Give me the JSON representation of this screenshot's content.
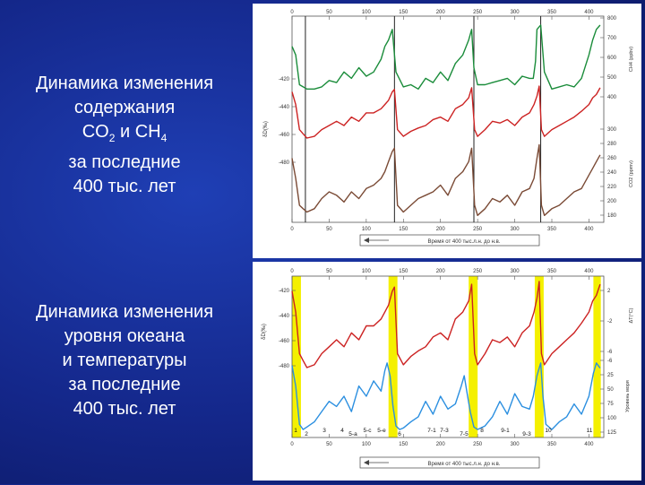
{
  "captions": {
    "top": [
      "Динамика изменения",
      "содержания",
      "CO2 и CH4",
      "за последние",
      "400 тыс. лет"
    ],
    "bottom": [
      "Динамика изменения",
      "уровня океана",
      "и температуры",
      "за последние",
      "400 тыс. лет"
    ]
  },
  "chart_data": [
    {
      "type": "line",
      "xlim": [
        0,
        420
      ],
      "x_ticks": [
        "0",
        "50",
        "100",
        "150",
        "200",
        "250",
        "300",
        "350",
        "400"
      ],
      "left_axis_label": "δD(‰)",
      "left_ticks": [
        "-420",
        "-440",
        "-460",
        "-480"
      ],
      "right_ticks_top": [
        "800",
        "700",
        "600",
        "500",
        "400"
      ],
      "right_ticks_bottom": [
        "300",
        "280",
        "260",
        "240",
        "220",
        "200",
        "180"
      ],
      "right_label_top": "CH4 (ppbv)",
      "right_label_bottom": "CO2 (ppmv)",
      "time_arrow_label": "Время от 400 тыс.л.н. до н.в.",
      "series": [
        {
          "color": "#1a8c3a",
          "x": [
            0,
            5,
            10,
            15,
            20,
            30,
            40,
            50,
            60,
            70,
            80,
            90,
            100,
            110,
            120,
            125,
            130,
            135,
            140,
            150,
            160,
            170,
            180,
            190,
            200,
            210,
            220,
            230,
            238,
            242,
            245,
            250,
            260,
            270,
            280,
            290,
            300,
            310,
            320,
            325,
            328,
            330,
            335,
            340,
            350,
            360,
            370,
            380,
            390,
            400,
            405,
            410,
            415
          ],
          "y": [
            620,
            580,
            440,
            430,
            420,
            420,
            430,
            460,
            450,
            500,
            470,
            520,
            480,
            500,
            560,
            620,
            650,
            700,
            500,
            430,
            440,
            420,
            470,
            450,
            500,
            460,
            540,
            580,
            650,
            700,
            520,
            440,
            440,
            450,
            460,
            470,
            440,
            480,
            470,
            470,
            550,
            700,
            720,
            500,
            420,
            430,
            440,
            430,
            470,
            580,
            650,
            700,
            720
          ]
        },
        {
          "color": "#cc2222",
          "x": [
            0,
            5,
            10,
            15,
            20,
            30,
            40,
            50,
            60,
            70,
            80,
            90,
            100,
            110,
            120,
            125,
            130,
            135,
            138,
            142,
            150,
            160,
            170,
            180,
            190,
            200,
            210,
            220,
            230,
            238,
            242,
            246,
            250,
            260,
            270,
            280,
            290,
            300,
            310,
            320,
            326,
            330,
            333,
            336,
            340,
            350,
            360,
            370,
            380,
            390,
            400,
            405,
            410,
            415
          ],
          "y": [
            -425,
            -440,
            -470,
            -475,
            -480,
            -478,
            -470,
            -465,
            -460,
            -465,
            -455,
            -460,
            -450,
            -450,
            -445,
            -440,
            -435,
            -425,
            -422,
            -470,
            -478,
            -472,
            -468,
            -465,
            -458,
            -455,
            -460,
            -445,
            -440,
            -432,
            -420,
            -470,
            -478,
            -470,
            -460,
            -462,
            -458,
            -465,
            -455,
            -450,
            -440,
            -430,
            -418,
            -470,
            -478,
            -470,
            -465,
            -460,
            -455,
            -448,
            -440,
            -432,
            -428,
            -420
          ]
        },
        {
          "color": "#7a4a35",
          "x": [
            0,
            5,
            10,
            15,
            20,
            30,
            40,
            50,
            60,
            70,
            80,
            90,
            100,
            110,
            120,
            125,
            130,
            135,
            138,
            142,
            150,
            160,
            170,
            180,
            190,
            200,
            210,
            220,
            230,
            238,
            242,
            246,
            250,
            260,
            270,
            280,
            290,
            300,
            310,
            320,
            326,
            330,
            333,
            336,
            340,
            350,
            360,
            370,
            380,
            390,
            400,
            405,
            410,
            415
          ],
          "y": [
            270,
            240,
            200,
            195,
            190,
            195,
            210,
            220,
            215,
            205,
            220,
            210,
            225,
            230,
            240,
            250,
            265,
            280,
            285,
            200,
            190,
            200,
            210,
            215,
            220,
            230,
            215,
            240,
            250,
            265,
            285,
            200,
            185,
            195,
            210,
            205,
            215,
            200,
            220,
            225,
            240,
            270,
            290,
            200,
            185,
            195,
            200,
            210,
            220,
            225,
            245,
            255,
            265,
            275
          ]
        }
      ],
      "markers_x": [
        18,
        138,
        245,
        335
      ]
    },
    {
      "type": "line",
      "xlim": [
        0,
        420
      ],
      "x_ticks": [
        "0",
        "50",
        "100",
        "150",
        "200",
        "250",
        "300",
        "350",
        "400"
      ],
      "left_axis_label": "δD(‰)",
      "left_ticks": [
        "-420",
        "-440",
        "-460",
        "-480"
      ],
      "right_ticks_top": [
        "2",
        "-2",
        "-6"
      ],
      "right_ticks_bottom": [
        "-6",
        "25",
        "50",
        "75",
        "100",
        "125"
      ],
      "right_label_top": "ΔT(°C)",
      "right_label_bottom": "Уровень моря",
      "stages": [
        "1",
        "2",
        "3",
        "4",
        "5-а",
        "5-с",
        "5-е",
        "6",
        "7-1",
        "7-3",
        "7-5",
        "8",
        "9-1",
        "9-3",
        "10",
        "11"
      ],
      "time_arrow_label": "Время от 400 тыс.л.н. до н.в.",
      "highlights_x": [
        [
          0,
          12
        ],
        [
          130,
          142
        ],
        [
          238,
          250
        ],
        [
          327,
          339
        ],
        [
          406,
          416
        ]
      ],
      "series": [
        {
          "color": "#cc2222",
          "x": [
            0,
            5,
            10,
            15,
            20,
            30,
            40,
            50,
            60,
            70,
            80,
            90,
            100,
            110,
            120,
            125,
            130,
            135,
            138,
            142,
            150,
            160,
            170,
            180,
            190,
            200,
            210,
            220,
            230,
            238,
            242,
            246,
            250,
            260,
            270,
            280,
            290,
            300,
            310,
            320,
            326,
            330,
            333,
            336,
            340,
            350,
            360,
            370,
            380,
            390,
            400,
            405,
            410,
            415
          ],
          "y": [
            -425,
            -440,
            -470,
            -475,
            -480,
            -478,
            -470,
            -465,
            -460,
            -465,
            -455,
            -460,
            -450,
            -450,
            -445,
            -440,
            -435,
            -425,
            -422,
            -470,
            -478,
            -472,
            -468,
            -465,
            -458,
            -455,
            -460,
            -445,
            -440,
            -432,
            -420,
            -470,
            -478,
            -470,
            -460,
            -462,
            -458,
            -465,
            -455,
            -450,
            -440,
            -430,
            -418,
            -470,
            -478,
            -470,
            -465,
            -460,
            -455,
            -448,
            -440,
            -432,
            -428,
            -420
          ]
        },
        {
          "color": "#2b8fe0",
          "x": [
            0,
            5,
            10,
            15,
            20,
            30,
            40,
            50,
            60,
            70,
            80,
            90,
            100,
            110,
            120,
            125,
            128,
            132,
            136,
            140,
            145,
            150,
            160,
            170,
            180,
            190,
            200,
            210,
            220,
            228,
            232,
            236,
            240,
            245,
            250,
            260,
            270,
            280,
            290,
            300,
            310,
            320,
            325,
            330,
            335,
            338,
            342,
            350,
            360,
            370,
            380,
            390,
            400,
            406,
            410,
            415
          ],
          "y": [
            0,
            40,
            115,
            125,
            120,
            110,
            90,
            70,
            80,
            60,
            90,
            40,
            60,
            30,
            50,
            10,
            -5,
            20,
            80,
            118,
            125,
            122,
            110,
            100,
            70,
            95,
            60,
            85,
            75,
            40,
            20,
            55,
            90,
            120,
            125,
            118,
            100,
            70,
            95,
            55,
            80,
            85,
            60,
            20,
            -5,
            60,
            115,
            125,
            110,
            100,
            75,
            95,
            60,
            15,
            -5,
            5
          ]
        }
      ]
    }
  ]
}
